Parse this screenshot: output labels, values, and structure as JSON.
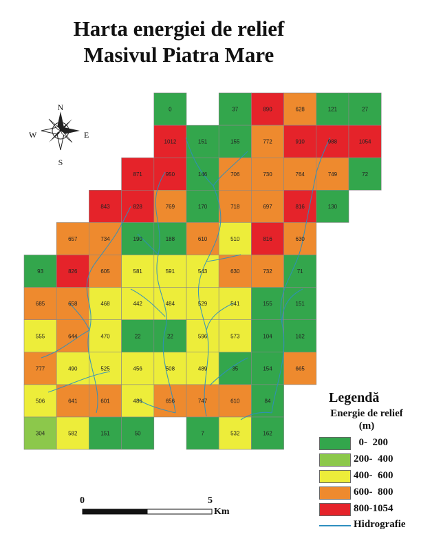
{
  "title_line1": "Harta energiei de relief",
  "title_line2": "Masivul Piatra Mare",
  "compass": {
    "north": "N",
    "south": "S",
    "east": "E",
    "west": "W"
  },
  "colors": {
    "c1": "#33a64c",
    "c2": "#8cc84b",
    "c3": "#eded3a",
    "c4": "#ee8a2e",
    "c5": "#e5232a",
    "river": "#2e8fbf"
  },
  "legend": {
    "title": "Legendă",
    "subtitle_line1": "Energie de relief",
    "subtitle_line2": "(m)",
    "classes": [
      {
        "label": "  0-  200",
        "color": "#33a64c"
      },
      {
        "label": "200-  400",
        "color": "#8cc84b"
      },
      {
        "label": "400-  600",
        "color": "#eded3a"
      },
      {
        "label": "600-  800",
        "color": "#ee8a2e"
      },
      {
        "label": "800-1054",
        "color": "#e5232a"
      }
    ],
    "hydro_label": "Hidrografie"
  },
  "scale": {
    "start": "0",
    "end": "5",
    "unit": "Km"
  },
  "grid": {
    "rows": [
      [
        "",
        "",
        "",
        "",
        "0",
        "",
        "37",
        "890",
        "628",
        "121",
        "27"
      ],
      [
        "",
        "",
        "",
        "",
        "1012",
        "151",
        "155",
        "772",
        "910",
        "988",
        "1054"
      ],
      [
        "",
        "",
        "",
        "871",
        "950",
        "146",
        "706",
        "730",
        "764",
        "749",
        "72"
      ],
      [
        "",
        "",
        "843",
        "828",
        "769",
        "170",
        "718",
        "697",
        "816",
        "130",
        ""
      ],
      [
        "",
        "657",
        "734",
        "190",
        "188",
        "610",
        "510",
        "816",
        "630",
        "",
        ""
      ],
      [
        "93",
        "826",
        "605",
        "581",
        "591",
        "543",
        "630",
        "732",
        "71",
        "",
        ""
      ],
      [
        "685",
        "658",
        "468",
        "442",
        "484",
        "529",
        "541",
        "155",
        "151",
        "",
        ""
      ],
      [
        "555",
        "644",
        "470",
        "22",
        "22",
        "596",
        "573",
        "104",
        "162",
        "",
        ""
      ],
      [
        "777",
        "490",
        "525",
        "456",
        "508",
        "489",
        "35",
        "154",
        "665",
        "",
        ""
      ],
      [
        "506",
        "641",
        "601",
        "486",
        "656",
        "747",
        "610",
        "84",
        "",
        "",
        ""
      ],
      [
        "304",
        "582",
        "151",
        "50",
        "",
        "7",
        "532",
        "162",
        "",
        "",
        ""
      ]
    ]
  }
}
